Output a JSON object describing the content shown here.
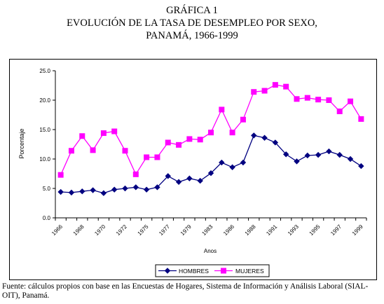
{
  "title_line1": "GRÁFICA 1",
  "title_line2": "EVOLUCIÓN DE LA TASA DE DESEMPLEO POR SEXO,",
  "title_line3": "PANAMÁ, 1966-1999",
  "source": "Fuente: cálculos propios con base en las Encuestas de Hogares, Sistema de Información y Análisis Laboral (SIAL-OIT), Panamá.",
  "colors": {
    "hombres": "#000080",
    "mujeres": "#ff00ff",
    "axis": "#000000"
  },
  "chart_data": {
    "type": "line",
    "ylabel": "Porcentaje",
    "xlabel": "Anos",
    "ylim": [
      0,
      25
    ],
    "yticks": [
      "0.0",
      "5.0",
      "10.0",
      "15.0",
      "20.0",
      "25.0"
    ],
    "x_tick_labels": [
      "1966",
      "1968",
      "1970",
      "1972",
      "1975",
      "1977",
      "1979",
      "1983",
      "1986",
      "1988",
      "1991",
      "1993",
      "1995",
      "1997",
      "1999"
    ],
    "grid": false,
    "legend": "bottom-center",
    "series": [
      {
        "name": "HOMBRES",
        "marker": "diamond",
        "values": [
          4.4,
          4.3,
          4.5,
          4.7,
          4.2,
          4.8,
          5.0,
          5.2,
          4.8,
          5.2,
          7.1,
          6.1,
          6.7,
          6.3,
          7.6,
          9.4,
          8.6,
          9.4,
          14.0,
          13.6,
          12.8,
          10.8,
          9.6,
          10.6,
          10.7,
          11.3,
          10.7,
          10.0,
          8.8
        ]
      },
      {
        "name": "MUJERES",
        "marker": "square",
        "values": [
          7.3,
          11.4,
          13.9,
          11.5,
          14.4,
          14.7,
          11.4,
          7.4,
          10.3,
          10.3,
          12.8,
          12.4,
          13.4,
          13.3,
          14.5,
          18.4,
          14.5,
          16.7,
          21.4,
          21.6,
          22.6,
          22.3,
          20.2,
          20.4,
          20.1,
          20.0,
          18.1,
          19.8,
          16.8
        ]
      }
    ]
  }
}
